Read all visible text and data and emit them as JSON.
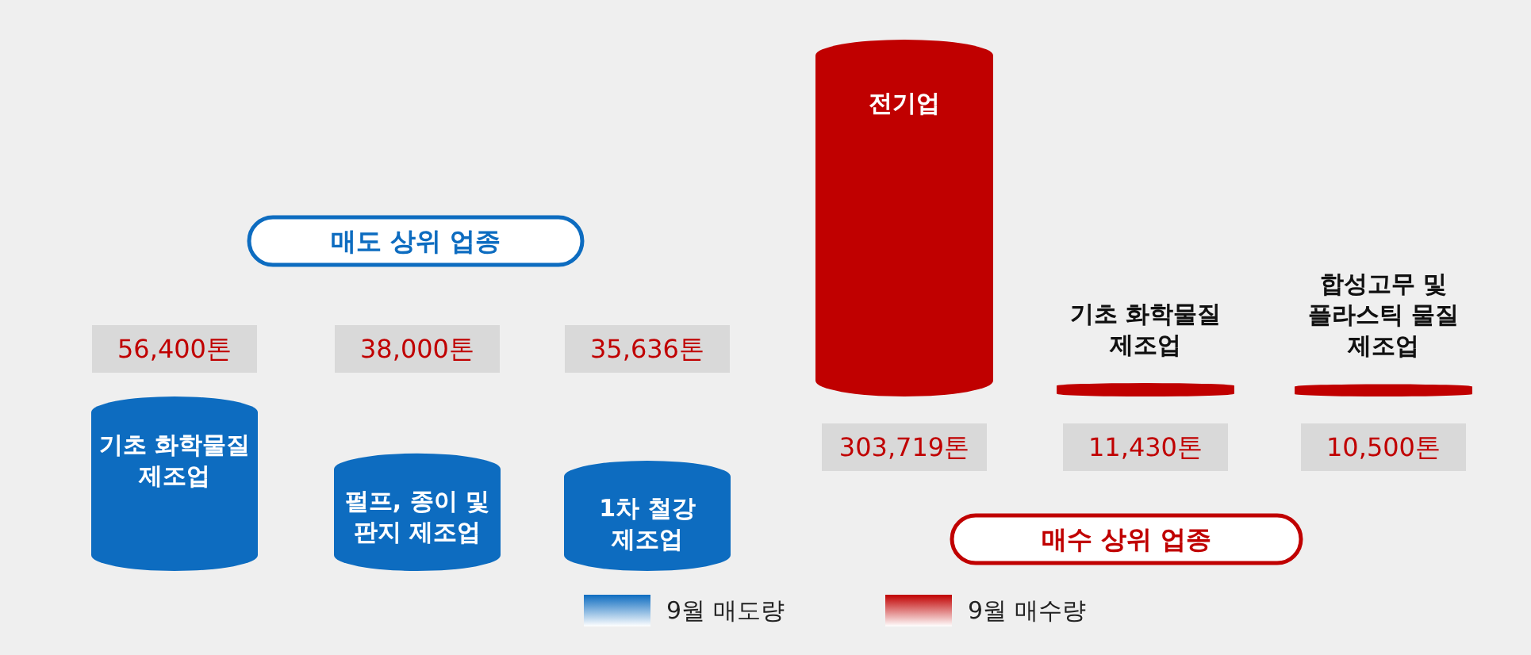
{
  "chart_data": [
    {
      "type": "bar",
      "title": "매도 상위 업종",
      "categories": [
        "기초 화학물질 제조업",
        "펄프, 종이 및 판지 제조업",
        "1차 철강 제조업"
      ],
      "legend": "bottom",
      "series": [
        {
          "name": "9월 매도량",
          "color": "#0d6cc0",
          "values": [
            56400,
            38000,
            35636
          ],
          "value_labels": [
            "56,400톤",
            "38,000톤",
            "35,636톤"
          ]
        }
      ]
    },
    {
      "type": "bar",
      "title": "매수 상위 업종",
      "categories": [
        "전기업",
        "기초 화학물질 제조업",
        "합성고무 및 플라스틱 물질 제조업"
      ],
      "legend": "bottom",
      "series": [
        {
          "name": "9월 매수량",
          "color": "#c00000",
          "values": [
            303719,
            11430,
            10500
          ],
          "value_labels": [
            "303,719톤",
            "11,430톤",
            "10,500톤"
          ]
        }
      ]
    }
  ]
}
